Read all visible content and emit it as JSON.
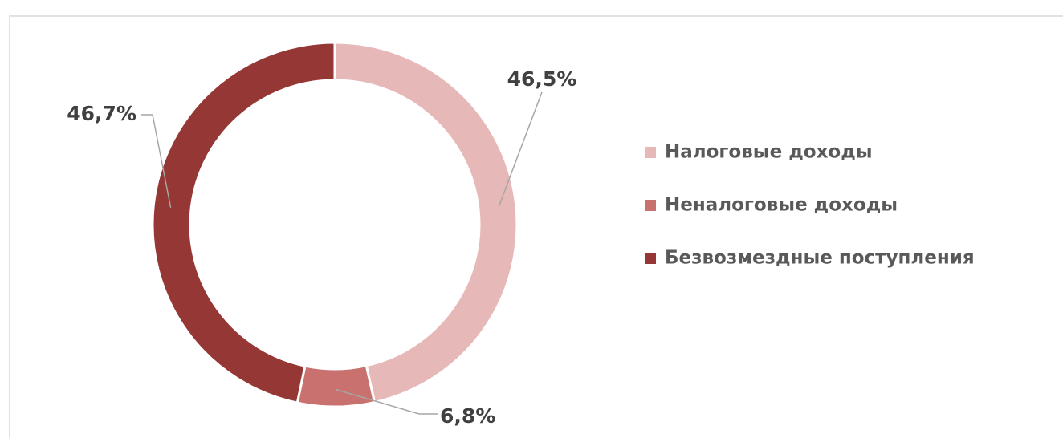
{
  "chart_data": {
    "type": "donut",
    "categories": [
      "Налоговые доходы",
      "Неналоговые доходы",
      "Безвозмездные поступления"
    ],
    "values": [
      46.5,
      6.8,
      46.7
    ],
    "value_labels": [
      "46,5%",
      "6,8%",
      "46,7%"
    ],
    "colors": [
      "#e6b9b8",
      "#c9716e",
      "#953735"
    ],
    "legend": "right"
  }
}
